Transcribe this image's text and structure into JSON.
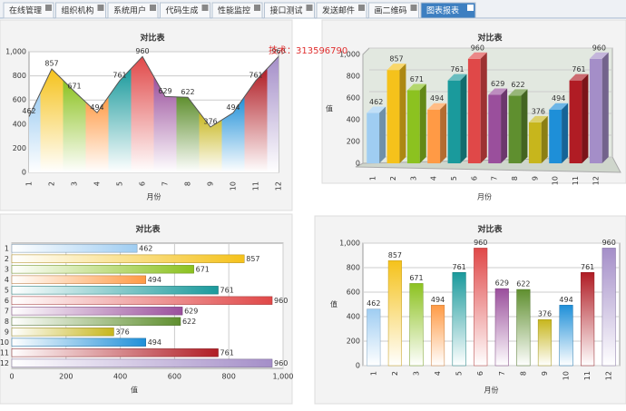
{
  "tabs": [
    "在线管理",
    "组织机构",
    "系统用户",
    "代码生成",
    "性能监控",
    "接口测试",
    "发送邮件",
    "画二维码",
    "图表报表"
  ],
  "watermark": "技术：313596790",
  "chart_data": [
    {
      "type": "area",
      "title": "对比表",
      "x_label": "月份",
      "categories": [
        "1",
        "2",
        "3",
        "4",
        "5",
        "6",
        "7",
        "8",
        "9",
        "10",
        "11",
        "12"
      ],
      "values": [
        462,
        857,
        671,
        494,
        761,
        960,
        629,
        622,
        376,
        494,
        761,
        960
      ],
      "colors": [
        "#9fcdf2",
        "#f5c21b",
        "#8cc220",
        "#ff9a45",
        "#1a9a9c",
        "#e04848",
        "#9a4f9c",
        "#5f8f2f",
        "#c7b61c",
        "#1e8fd8",
        "#b01c24",
        "#a48ec8"
      ],
      "ylim": [
        0,
        1000
      ],
      "yticks": [
        0,
        200,
        400,
        600,
        800,
        {
          "value": 1000,
          "label": "1,000"
        }
      ],
      "grid": true
    },
    {
      "type": "bar3d",
      "title": "对比表",
      "x_label": "月份",
      "y_label": "值",
      "categories": [
        "1",
        "2",
        "3",
        "4",
        "5",
        "6",
        "7",
        "8",
        "9",
        "10",
        "11",
        "12"
      ],
      "values": [
        462,
        857,
        671,
        494,
        761,
        960,
        629,
        622,
        376,
        494,
        761,
        960
      ],
      "colors": [
        "#9fcdf2",
        "#f5c21b",
        "#8cc220",
        "#ff9a45",
        "#1a9a9c",
        "#e04848",
        "#9a4f9c",
        "#5f8f2f",
        "#c7b61c",
        "#1e8fd8",
        "#b01c24",
        "#a48ec8"
      ],
      "ylim": [
        0,
        1000
      ],
      "yticks": [
        0,
        200,
        400,
        600,
        800,
        {
          "value": 1000,
          "label": "1,000"
        }
      ],
      "grid": true
    },
    {
      "type": "hbar",
      "title": "对比表",
      "x_label": "值",
      "categories": [
        "1",
        "2",
        "3",
        "4",
        "5",
        "6",
        "7",
        "8",
        "9",
        "10",
        "11",
        "12"
      ],
      "values": [
        462,
        857,
        671,
        494,
        761,
        960,
        629,
        622,
        376,
        494,
        761,
        960
      ],
      "colors": [
        "#9fcdf2",
        "#f5c21b",
        "#8cc220",
        "#ff9a45",
        "#1a9a9c",
        "#e04848",
        "#9a4f9c",
        "#5f8f2f",
        "#c7b61c",
        "#1e8fd8",
        "#b01c24",
        "#a48ec8"
      ],
      "xlim": [
        0,
        1000
      ],
      "xticks": [
        0,
        200,
        400,
        600,
        800,
        {
          "value": 1000,
          "label": "1,000"
        }
      ],
      "grid": true
    },
    {
      "type": "bar",
      "title": "对比表",
      "x_label": "月份",
      "y_label": "值",
      "categories": [
        "1",
        "2",
        "3",
        "4",
        "5",
        "6",
        "7",
        "8",
        "9",
        "10",
        "11",
        "12"
      ],
      "values": [
        462,
        857,
        671,
        494,
        761,
        960,
        629,
        622,
        376,
        494,
        761,
        960
      ],
      "colors": [
        "#9fcdf2",
        "#f5c21b",
        "#8cc220",
        "#ff9a45",
        "#1a9a9c",
        "#e04848",
        "#9a4f9c",
        "#5f8f2f",
        "#c7b61c",
        "#1e8fd8",
        "#b01c24",
        "#a48ec8"
      ],
      "ylim": [
        0,
        1000
      ],
      "yticks": [
        0,
        200,
        400,
        600,
        800,
        {
          "value": 1000,
          "label": "1,000"
        }
      ],
      "grid": true
    }
  ]
}
